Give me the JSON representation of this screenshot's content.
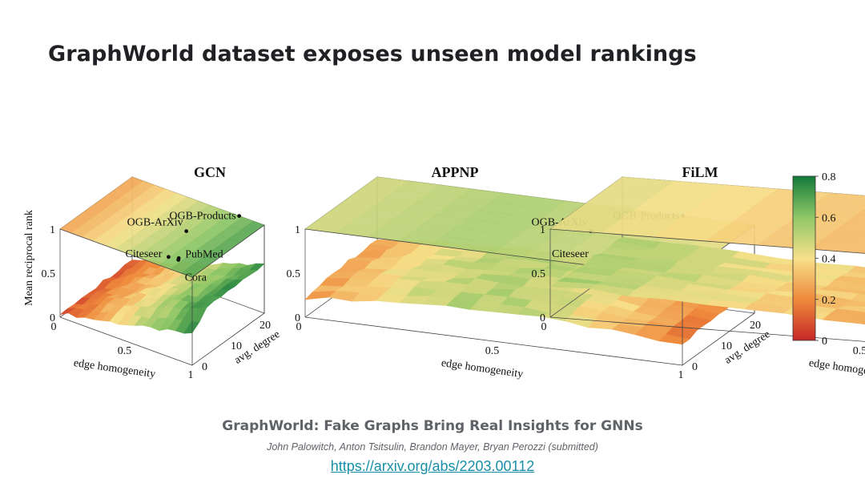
{
  "slide": {
    "title": "GraphWorld dataset exposes unseen model rankings"
  },
  "citation": {
    "title": "GraphWorld: Fake Graphs Bring Real Insights for GNNs",
    "authors": "John Palowitch, Anton Tsitsulin, Brandon Mayer, Bryan Perozzi (submitted)",
    "link": "https://arxiv.org/abs/2203.00112"
  },
  "colors": {
    "low": "#c62828",
    "mid": "#f7e08a",
    "high": "#127a3a"
  },
  "chart_data": {
    "type": "surface3d",
    "zlabel": "Mean reciprocal rank",
    "xlabel": "edge homogeneity",
    "ylabel": "avg. degree",
    "x_ticks": [
      "0",
      "0.5",
      "1"
    ],
    "y_ticks": [
      "0",
      "10",
      "20"
    ],
    "z_ticks": [
      "0",
      "0.5",
      "1"
    ],
    "xlim": [
      0,
      1
    ],
    "ylim": [
      0,
      25
    ],
    "zlim": [
      0,
      1
    ],
    "colorbar": {
      "range": [
        0,
        0.8
      ],
      "ticks": [
        "0",
        "0.2",
        "0.4",
        "0.6",
        "0.8"
      ]
    },
    "datasets": [
      {
        "name": "OGB-Products",
        "x": 0.81,
        "y": 25
      },
      {
        "name": "OGB-ArXiv",
        "x": 0.65,
        "y": 14
      },
      {
        "name": "PubMed",
        "x": 0.8,
        "y": 4.5
      },
      {
        "name": "Citeseer",
        "x": 0.74,
        "y": 3.7
      },
      {
        "name": "Cora",
        "x": 0.81,
        "y": 3.9
      }
    ],
    "panels": [
      {
        "title": "GCN",
        "surface_model": "gcn",
        "plane_color_range": [
          0.25,
          0.7
        ]
      },
      {
        "title": "APPNP",
        "surface_model": "appnp",
        "plane_color_range": [
          0.35,
          0.55
        ]
      },
      {
        "title": "FiLM",
        "surface_model": "film",
        "plane_color_range": [
          0.15,
          0.45
        ]
      }
    ]
  }
}
